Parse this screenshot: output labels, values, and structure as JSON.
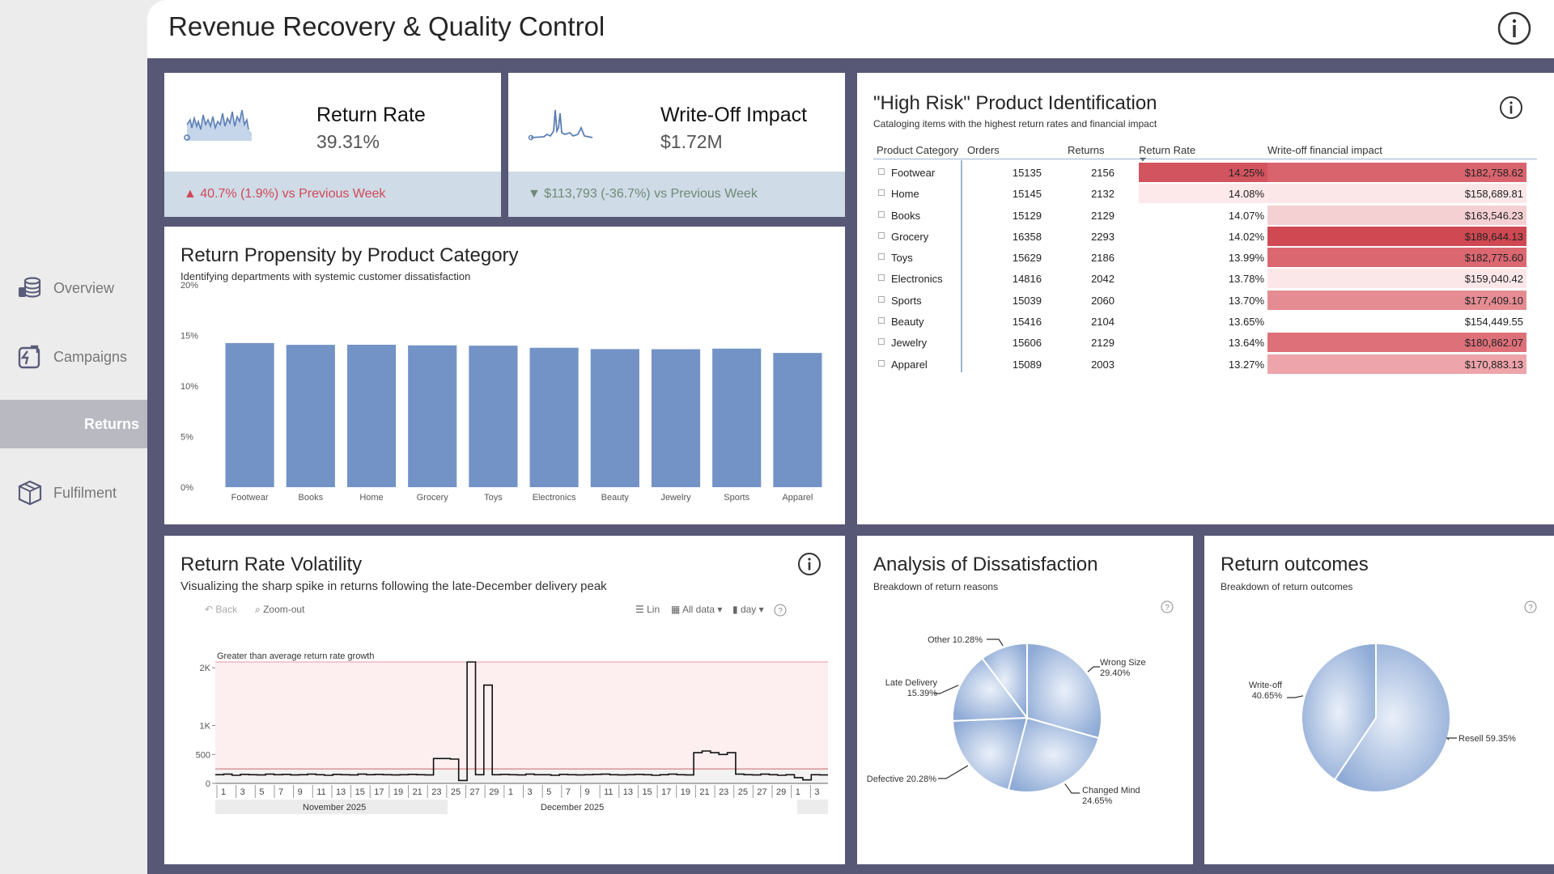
{
  "sidebar": {
    "items": [
      {
        "label": "Overview",
        "icon": "coins-stack-icon"
      },
      {
        "label": "Campaigns",
        "icon": "campaign-return-icon"
      },
      {
        "label": "Returns",
        "icon": "",
        "active": true
      },
      {
        "label": "Fulfilment",
        "icon": "package-box-icon"
      }
    ]
  },
  "header": {
    "title": "Revenue Recovery & Quality Control"
  },
  "kpi_return_rate": {
    "label": "Return Rate",
    "value": "39.31%",
    "delta": "▲ 40.7% (1.9%) vs Previous Week"
  },
  "kpi_writeoff": {
    "label": "Write-Off Impact",
    "value": "$1.72M",
    "delta": "▼ $113,793 (-36.7%) vs Previous Week"
  },
  "propensity": {
    "title": "Return Propensity by Product Category",
    "subtitle": "Identifying departments with systemic customer dissatisfaction"
  },
  "high_risk": {
    "title": "\"High Risk\" Product Identification",
    "subtitle": "Cataloging items with the highest return rates and financial impact",
    "columns": [
      "Product Category",
      "Orders",
      "Returns",
      "Return Rate",
      "Write-off financial impact"
    ],
    "rows": [
      {
        "category": "Footwear",
        "orders": "15135",
        "returns": "2156",
        "rate": "14.25%",
        "writeoff": "$182,758.62",
        "rate_color": "#d2545f",
        "wo_color": "#d9646e"
      },
      {
        "category": "Home",
        "orders": "15145",
        "returns": "2132",
        "rate": "14.08%",
        "writeoff": "$158,689.81",
        "rate_color": "#fde8ea",
        "wo_color": "#fbe6e8"
      },
      {
        "category": "Books",
        "orders": "15129",
        "returns": "2129",
        "rate": "14.07%",
        "writeoff": "$163,546.23",
        "rate_color": "#ffffff",
        "wo_color": "#f5d0d3"
      },
      {
        "category": "Grocery",
        "orders": "16358",
        "returns": "2293",
        "rate": "14.02%",
        "writeoff": "$189,644.13",
        "rate_color": "#ffffff",
        "wo_color": "#cf4852"
      },
      {
        "category": "Toys",
        "orders": "15629",
        "returns": "2186",
        "rate": "13.99%",
        "writeoff": "$182,775.60",
        "rate_color": "#ffffff",
        "wo_color": "#db6771"
      },
      {
        "category": "Electronics",
        "orders": "14816",
        "returns": "2042",
        "rate": "13.78%",
        "writeoff": "$159,040.42",
        "rate_color": "#ffffff",
        "wo_color": "#fbe6e8"
      },
      {
        "category": "Sports",
        "orders": "15039",
        "returns": "2060",
        "rate": "13.70%",
        "writeoff": "$177,409.10",
        "rate_color": "#ffffff",
        "wo_color": "#e58c93"
      },
      {
        "category": "Beauty",
        "orders": "15416",
        "returns": "2104",
        "rate": "13.65%",
        "writeoff": "$154,449.55",
        "rate_color": "#ffffff",
        "wo_color": "#ffffff"
      },
      {
        "category": "Jewelry",
        "orders": "15606",
        "returns": "2129",
        "rate": "13.64%",
        "writeoff": "$180,862.07",
        "rate_color": "#ffffff",
        "wo_color": "#dd7079"
      },
      {
        "category": "Apparel",
        "orders": "15089",
        "returns": "2003",
        "rate": "13.27%",
        "writeoff": "$170,883.13",
        "rate_color": "#ffffff",
        "wo_color": "#eda4aa"
      }
    ]
  },
  "volatility": {
    "title": "Return Rate Volatility",
    "subtitle": "Visualizing the sharp spike in returns following the late-December delivery peak",
    "toolbar": {
      "back": "Back",
      "zoom_out": "Zoom-out",
      "lin": "Lin",
      "all_data": "All data",
      "day": "day"
    },
    "band_label": "Greater than average return rate growth",
    "month_labels": [
      "November 2025",
      "December 2025"
    ]
  },
  "dissatisfaction": {
    "title": "Analysis of Dissatisfaction",
    "subtitle": "Breakdown of return reasons"
  },
  "outcomes": {
    "title": "Return outcomes",
    "subtitle": "Breakdown of return outcomes"
  },
  "chart_data": [
    {
      "type": "bar",
      "title": "Return Propensity by Product Category",
      "categories": [
        "Footwear",
        "Books",
        "Home",
        "Grocery",
        "Toys",
        "Electronics",
        "Beauty",
        "Jewelry",
        "Sports",
        "Apparel"
      ],
      "values": [
        14.25,
        14.07,
        14.08,
        14.02,
        13.99,
        13.78,
        13.65,
        13.64,
        13.7,
        13.27
      ],
      "ylim": [
        0,
        20
      ],
      "yticks": [
        "0%",
        "5%",
        "10%",
        "15%",
        "20%"
      ],
      "color": "#7393c6"
    },
    {
      "type": "line",
      "title": "Return Rate Volatility",
      "step": true,
      "x_ticks": [
        "1",
        "3",
        "5",
        "7",
        "9",
        "11",
        "13",
        "15",
        "17",
        "19",
        "21",
        "23",
        "25",
        "27",
        "29",
        "1",
        "3",
        "5",
        "7",
        "9",
        "11",
        "13",
        "15",
        "17",
        "19",
        "21",
        "23",
        "25",
        "27",
        "29",
        "1",
        "3"
      ],
      "yticks": [
        "0",
        "500",
        "1K",
        "2K"
      ],
      "ylim": [
        0,
        2100
      ],
      "values": [
        150,
        160,
        140,
        155,
        150,
        145,
        160,
        150,
        155,
        145,
        150,
        160,
        150,
        140,
        155,
        150,
        145,
        160,
        150,
        155,
        150,
        145,
        150,
        155,
        150,
        145,
        430,
        430,
        420,
        50,
        2100,
        150,
        1700,
        150,
        155,
        150,
        145,
        160,
        150,
        150,
        140,
        155,
        150,
        145,
        150,
        155,
        160,
        150,
        145,
        150,
        155,
        150,
        140,
        150,
        160,
        150,
        145,
        530,
        560,
        530,
        500,
        530,
        160,
        150,
        145,
        160,
        150,
        140,
        150,
        100,
        60,
        150,
        145
      ],
      "avg_line": 250,
      "line_color": "#111111"
    },
    {
      "type": "pie",
      "title": "Analysis of Dissatisfaction",
      "slices": [
        {
          "label": "Wrong Size",
          "value": 29.4
        },
        {
          "label": "Changed Mind",
          "value": 24.65
        },
        {
          "label": "Defective",
          "value": 20.28
        },
        {
          "label": "Late Delivery",
          "value": 15.39
        },
        {
          "label": "Other",
          "value": 10.28
        }
      ],
      "labels_text": [
        "Wrong Size 29.40%",
        "Changed Mind 24.65%",
        "Defective 20.28%",
        "Late Delivery 15.39%",
        "Other 10.28%"
      ]
    },
    {
      "type": "pie",
      "title": "Return outcomes",
      "slices": [
        {
          "label": "Resell",
          "value": 59.35
        },
        {
          "label": "Write-off",
          "value": 40.65
        }
      ],
      "labels_text": [
        "Resell 59.35%",
        "Write-off 40.65%"
      ]
    }
  ]
}
